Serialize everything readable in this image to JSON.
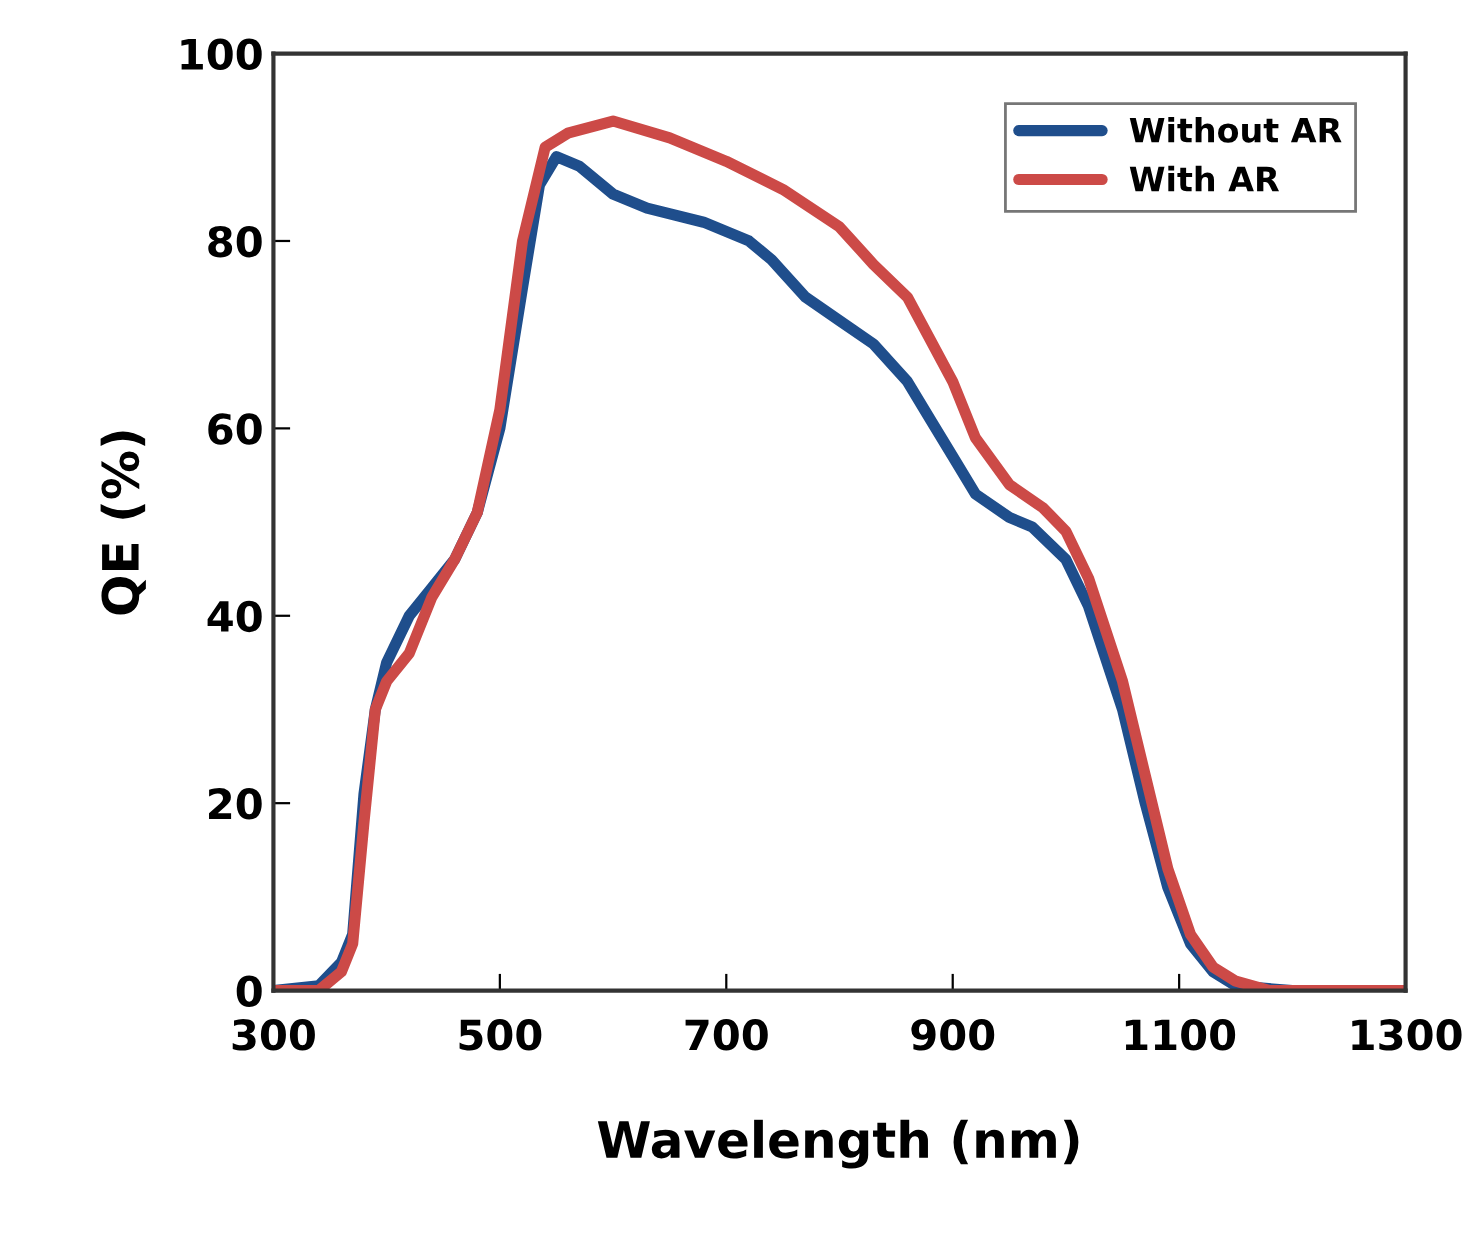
{
  "chart_data": {
    "type": "line",
    "xlabel": "Wavelength (nm)",
    "ylabel": "QE (%)",
    "xlim": [
      300,
      1300
    ],
    "ylim": [
      0,
      100
    ],
    "xticks": [
      300,
      500,
      700,
      900,
      1100,
      1300
    ],
    "yticks": [
      0,
      20,
      40,
      60,
      80,
      100
    ],
    "grid": false,
    "legend": "top right",
    "line_style": "solid",
    "marker": "none",
    "series": [
      {
        "name": "Without AR",
        "color": "#1f4e8c",
        "x": [
          300,
          340,
          360,
          370,
          380,
          390,
          400,
          420,
          440,
          460,
          480,
          500,
          520,
          535,
          550,
          570,
          600,
          630,
          680,
          720,
          740,
          770,
          800,
          830,
          860,
          880,
          900,
          920,
          950,
          970,
          1000,
          1020,
          1050,
          1070,
          1090,
          1110,
          1130,
          1150,
          1200,
          1300
        ],
        "values": [
          0,
          0.5,
          3,
          6,
          21,
          30,
          35,
          40,
          43,
          46,
          51,
          60,
          75,
          86,
          89,
          88,
          85,
          83.5,
          82,
          80,
          78,
          74,
          71.5,
          69,
          65,
          61,
          57,
          53,
          50.5,
          49.5,
          46,
          41,
          30,
          20,
          11,
          5,
          2,
          0.5,
          0,
          0
        ]
      },
      {
        "name": "With AR",
        "color": "#cc4a47",
        "x": [
          300,
          340,
          360,
          370,
          380,
          390,
          400,
          420,
          440,
          460,
          480,
          500,
          520,
          540,
          560,
          600,
          650,
          700,
          750,
          800,
          830,
          860,
          880,
          900,
          920,
          950,
          980,
          1000,
          1020,
          1050,
          1070,
          1090,
          1110,
          1130,
          1150,
          1180,
          1300
        ],
        "values": [
          0,
          0,
          2,
          5,
          18,
          30,
          33,
          36,
          42,
          46,
          51,
          62,
          80,
          90,
          91.5,
          92.8,
          91,
          88.5,
          85.5,
          81.5,
          77.5,
          74,
          69.5,
          65,
          59,
          54,
          51.5,
          49,
          44,
          33,
          23,
          13,
          6,
          2.5,
          1,
          0,
          0
        ]
      }
    ]
  }
}
